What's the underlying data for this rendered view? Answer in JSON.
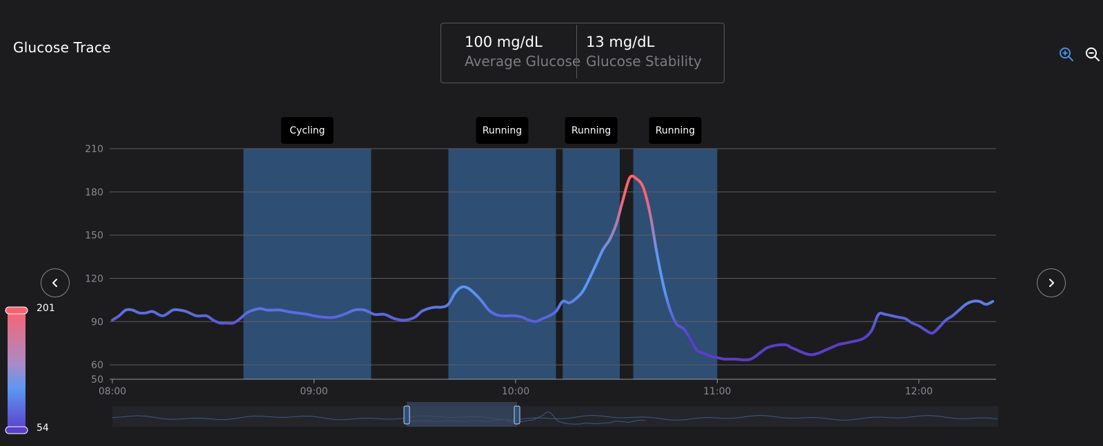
{
  "header": {
    "title": "Glucose Trace"
  },
  "stats": {
    "average_value": "100 mg/dL",
    "average_label": "Average Glucose",
    "stability_value": "13 mg/dL",
    "stability_label": "Glucose Stability"
  },
  "colors": {
    "background": "#1c1c1e",
    "activity_band": "#2e4e74",
    "trace_low": "#5b3ec9",
    "trace_mid": "#5c97f4",
    "trace_high": "#fb6271",
    "zoom_in_active": "#4a90e2"
  },
  "icons": {
    "zoom_in": "zoom-in-icon",
    "zoom_out": "zoom-out-icon",
    "prev": "chevron-left-icon",
    "next": "chevron-right-icon"
  },
  "color_scale": {
    "max_label": "201",
    "min_label": "54"
  },
  "chart_data": {
    "type": "line",
    "xlabel": "",
    "ylabel": "",
    "x_tick_labels": [
      "08:00",
      "09:00",
      "10:00",
      "11:00",
      "12:00"
    ],
    "y_tick_labels": [
      "50",
      "60",
      "90",
      "120",
      "150",
      "180",
      "210"
    ],
    "y_ticks": [
      50,
      60,
      90,
      120,
      150,
      180,
      210
    ],
    "ylim": [
      50,
      210
    ],
    "xlim": [
      "08:00",
      "12:23"
    ],
    "grid": true,
    "activities": [
      {
        "label": "Cycling",
        "start": "08:39",
        "end": "09:17"
      },
      {
        "label": "Running",
        "start": "09:40",
        "end": "10:12"
      },
      {
        "label": "Running",
        "start": "10:14",
        "end": "10:31"
      },
      {
        "label": "Running",
        "start": "10:35",
        "end": "11:00"
      }
    ],
    "series": [
      {
        "x": [
          "08:00",
          "08:02",
          "08:04",
          "08:06",
          "08:08",
          "08:10",
          "08:12",
          "08:15",
          "08:18",
          "08:20",
          "08:22",
          "08:25",
          "08:28",
          "08:30",
          "08:32",
          "08:34",
          "08:36",
          "08:38",
          "08:40",
          "08:42",
          "08:44",
          "08:46",
          "08:48",
          "08:50",
          "08:52",
          "08:55",
          "08:58",
          "09:00",
          "09:03",
          "09:06",
          "09:09",
          "09:12",
          "09:15",
          "09:18",
          "09:21",
          "09:24",
          "09:27",
          "09:30",
          "09:32",
          "09:34",
          "09:36",
          "09:38",
          "09:40",
          "09:42",
          "09:44",
          "09:46",
          "09:48",
          "09:50",
          "09:52",
          "09:54",
          "09:56",
          "09:58",
          "10:00",
          "10:02",
          "10:04",
          "10:06",
          "10:08",
          "10:10",
          "10:12",
          "10:14",
          "10:16",
          "10:18",
          "10:20",
          "10:22",
          "10:24",
          "10:26",
          "10:28",
          "10:30",
          "10:32",
          "10:34",
          "10:36",
          "10:38",
          "10:40",
          "10:42",
          "10:44",
          "10:46",
          "10:48",
          "10:50",
          "10:52",
          "10:54",
          "10:56",
          "10:58",
          "11:00",
          "11:02",
          "11:03",
          "11:05",
          "11:10",
          "11:15",
          "11:20",
          "11:22",
          "11:24",
          "11:26",
          "11:28",
          "11:30",
          "11:32",
          "11:34",
          "11:36",
          "11:38",
          "11:40",
          "11:42",
          "11:44",
          "11:46",
          "11:48",
          "11:50",
          "11:52",
          "11:54",
          "11:56",
          "11:58",
          "12:00",
          "12:02",
          "12:04",
          "12:06",
          "12:08",
          "12:10",
          "12:12",
          "12:14",
          "12:16",
          "12:18",
          "12:20",
          "12:22"
        ],
        "y": [
          91,
          94,
          98,
          98,
          96,
          96,
          97,
          94,
          98,
          98,
          97,
          94,
          94,
          91,
          89,
          89,
          89,
          92,
          96,
          98,
          99,
          98,
          98,
          98,
          97,
          96,
          95,
          94,
          93,
          93,
          95,
          98,
          98,
          95,
          95,
          92,
          91,
          93,
          97,
          99,
          100,
          100,
          102,
          110,
          114,
          113,
          109,
          104,
          98,
          95,
          94,
          94,
          94,
          93,
          91,
          90,
          92,
          94,
          97,
          104,
          103,
          106,
          111,
          120,
          130,
          140,
          147,
          158,
          175,
          190,
          189,
          183,
          165,
          138,
          115,
          98,
          88,
          85,
          78,
          70,
          68,
          66,
          65,
          64,
          64,
          64,
          64,
          72,
          74,
          72,
          70,
          68,
          67,
          68,
          70,
          72,
          74,
          75,
          76,
          77,
          79,
          84,
          95,
          95,
          94,
          93,
          92,
          89,
          87,
          84,
          82,
          86,
          91,
          94,
          98,
          102,
          104,
          104,
          102,
          104
        ]
      }
    ]
  }
}
